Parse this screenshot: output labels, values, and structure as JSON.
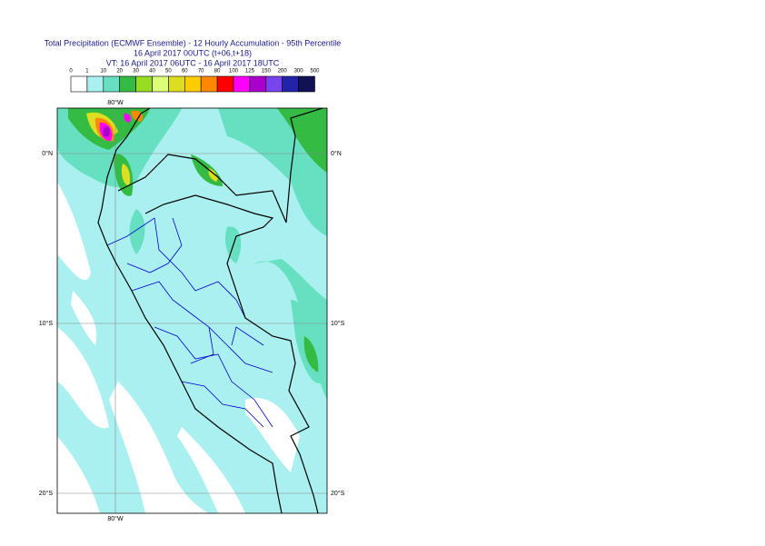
{
  "header": {
    "title_lines": [
      "Total Precipitation (ECMWF Ensemble) - 12 Hourly Accumulation - 95th Percentile",
      "16 April 2017 00UTC (t+06,t+18)",
      "VT: 16 April 2017 06UTC - 16 April 2017 18UTC"
    ]
  },
  "legend": {
    "labels": [
      0,
      1,
      10,
      20,
      30,
      40,
      50,
      60,
      70,
      80,
      100,
      125,
      150,
      200,
      300,
      500
    ],
    "colors": [
      "#ffffff",
      "#aaf0f0",
      "#66e0c0",
      "#33bb44",
      "#99dd22",
      "#ddff77",
      "#dddd22",
      "#ffcc00",
      "#ff8800",
      "#ff0000",
      "#ff00ff",
      "#aa00cc",
      "#7744ee",
      "#2222aa",
      "#111155"
    ]
  },
  "axes": {
    "top_lon": "80°W",
    "bottom_lon": "80°W",
    "left_lat": [
      "0°N",
      "10°S",
      "20°S"
    ],
    "right_lat": [
      "0°N",
      "10°S",
      "20°S"
    ]
  }
}
